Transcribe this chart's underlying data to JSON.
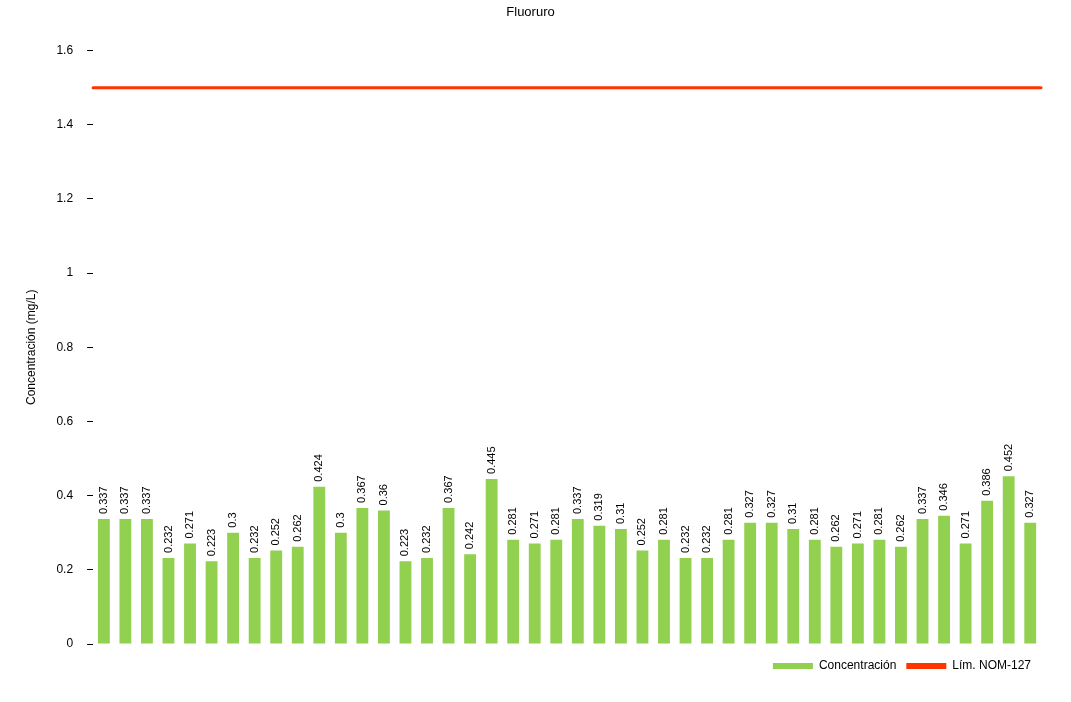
{
  "chart_data": {
    "type": "bar",
    "title": "Fluoruro",
    "ylabel": "Concentración (mg/L)",
    "categories": [
      null,
      null,
      null,
      null,
      null,
      null,
      null,
      null,
      null,
      null,
      null,
      null,
      null,
      null,
      null,
      null,
      null,
      null,
      null,
      null,
      null,
      null,
      null,
      null,
      null,
      null,
      null,
      null,
      null,
      null,
      null,
      null,
      null,
      null,
      null,
      null,
      null,
      null,
      null,
      null,
      null,
      null,
      null,
      null
    ],
    "series": [
      {
        "name": "Concentración",
        "color": "#92d050",
        "values": [
          0.337,
          0.337,
          0.337,
          0.232,
          0.271,
          0.223,
          0.3,
          0.232,
          0.252,
          0.262,
          0.424,
          0.3,
          0.367,
          0.36,
          0.223,
          0.232,
          0.367,
          0.242,
          0.445,
          0.281,
          0.271,
          0.281,
          0.337,
          0.319,
          0.31,
          0.252,
          0.281,
          0.232,
          0.232,
          0.281,
          0.327,
          0.327,
          0.31,
          0.281,
          0.262,
          0.271,
          0.281,
          0.262,
          0.337,
          0.346,
          0.271,
          0.386,
          0.452,
          0.327
        ]
      }
    ],
    "ref_lines": [
      {
        "axis": "y",
        "value": 1.5,
        "label": "Lím. NOM-127",
        "color": "#ff3300"
      }
    ],
    "ylim": [
      0,
      1.6
    ],
    "yticks": [
      0,
      0.2,
      0.4,
      0.6,
      0.8,
      1,
      1.2,
      1.4,
      1.6
    ],
    "data_labels": true,
    "grid": false,
    "legend": "bottom right"
  }
}
